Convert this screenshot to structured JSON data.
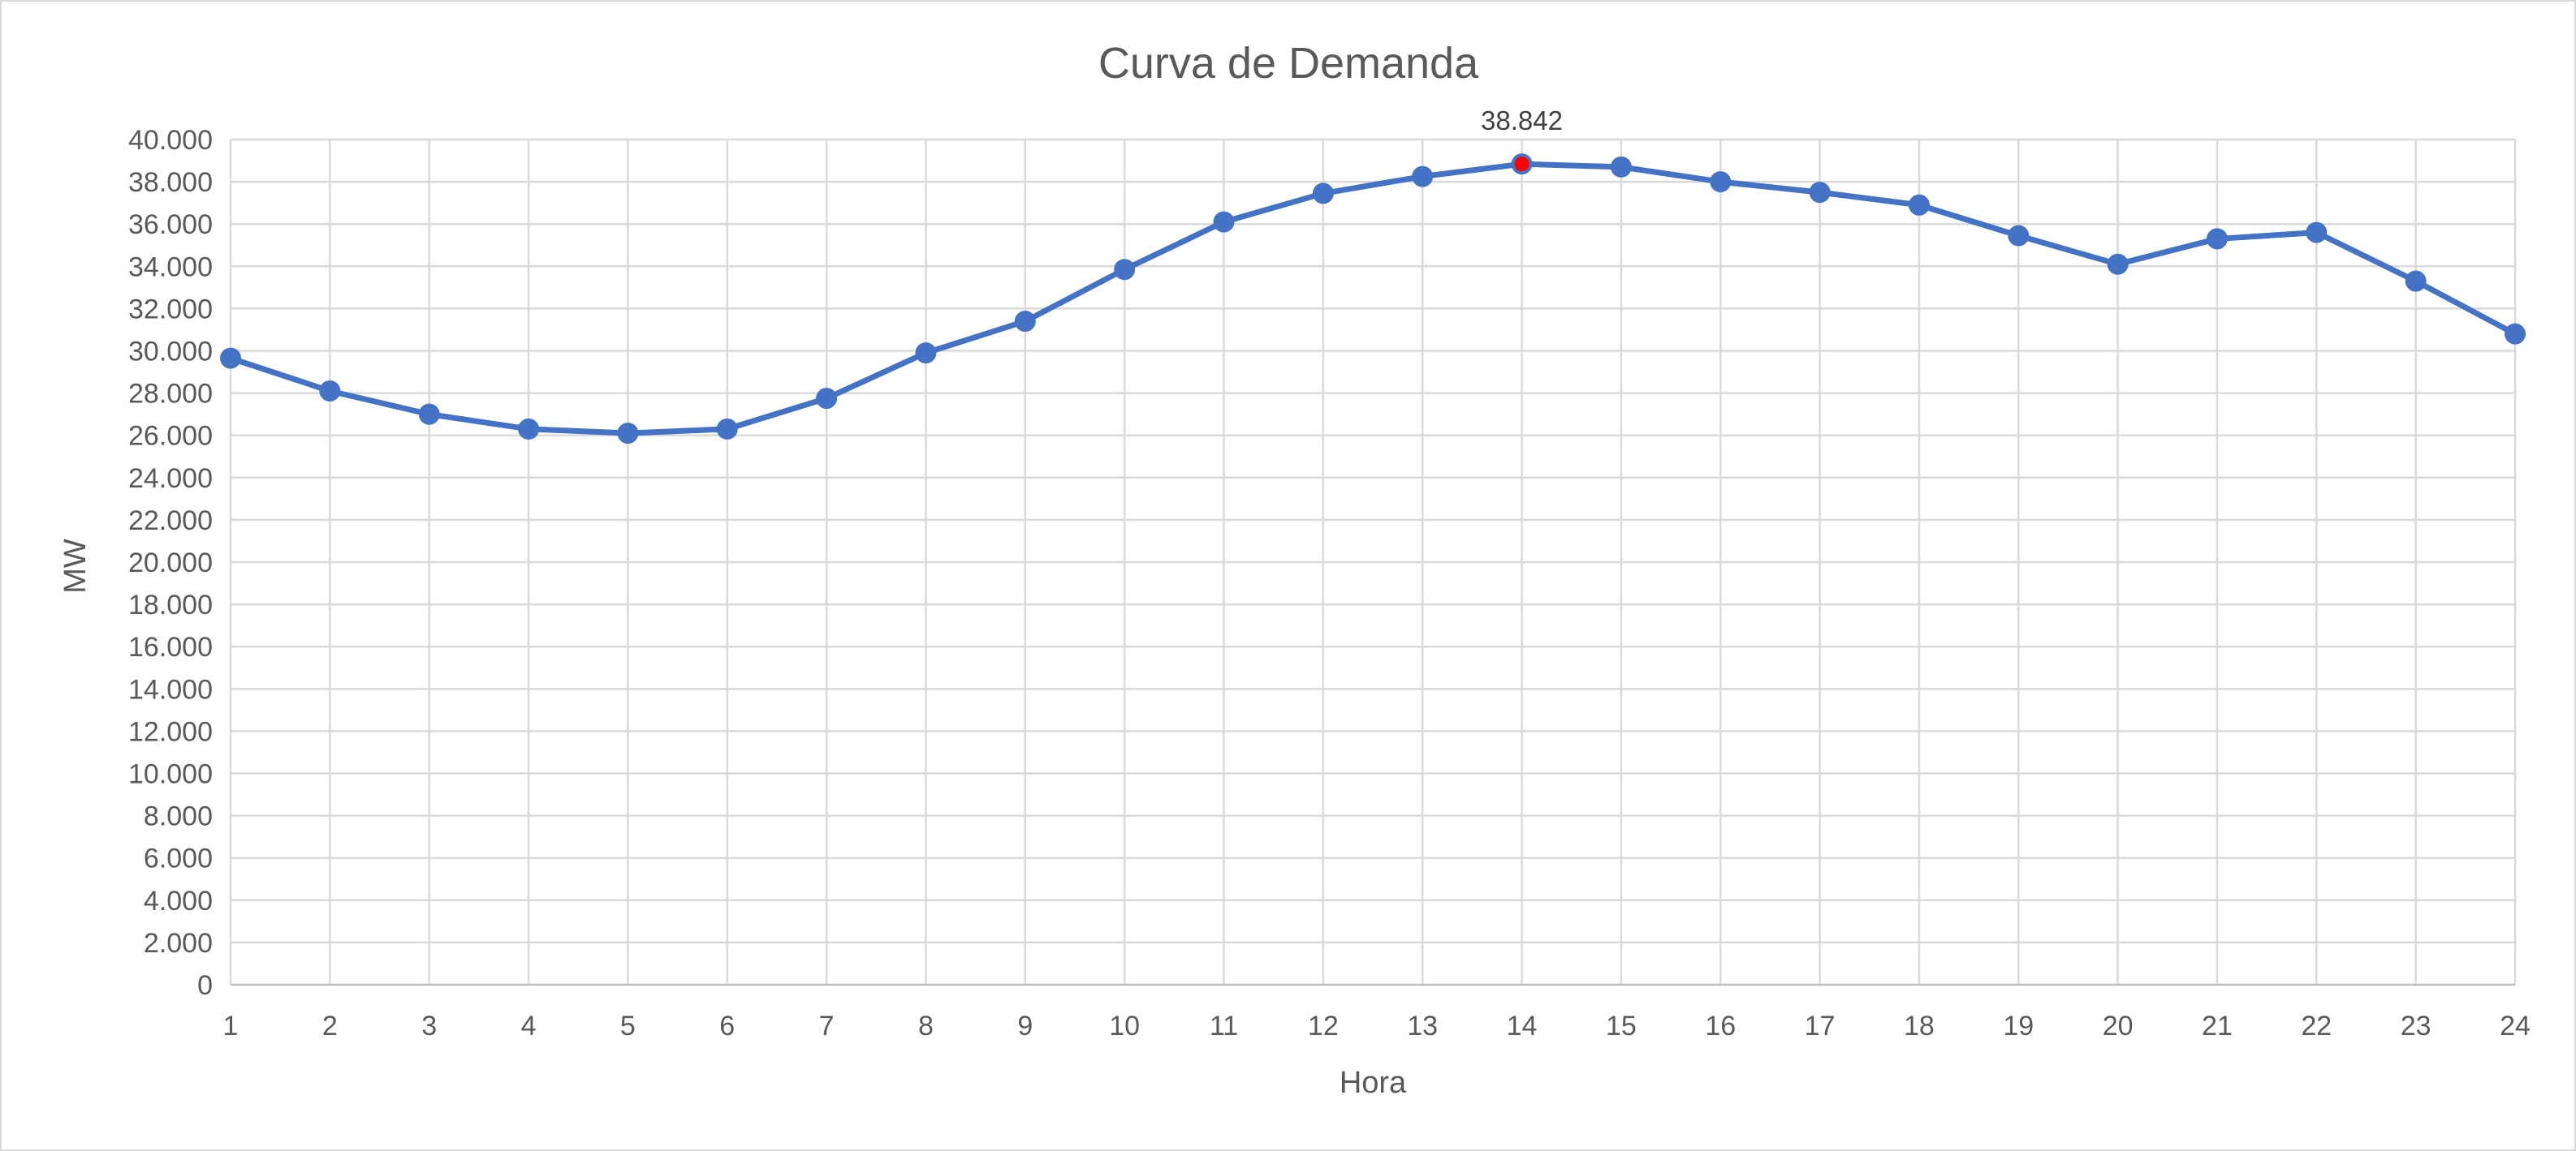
{
  "chart_data": {
    "type": "line",
    "title": "Curva de Demanda",
    "xlabel": "Hora",
    "ylabel": "MW",
    "x": [
      1,
      2,
      3,
      4,
      5,
      6,
      7,
      8,
      9,
      10,
      11,
      12,
      13,
      14,
      15,
      16,
      17,
      18,
      19,
      20,
      21,
      22,
      23,
      24
    ],
    "x_tick_labels": [
      "1",
      "2",
      "3",
      "4",
      "5",
      "6",
      "7",
      "8",
      "9",
      "10",
      "11",
      "12",
      "13",
      "14",
      "15",
      "16",
      "17",
      "18",
      "19",
      "20",
      "21",
      "22",
      "23",
      "24"
    ],
    "series": [
      {
        "color": "#4472c4",
        "values": [
          29650,
          28100,
          27000,
          26300,
          26100,
          26300,
          27750,
          29900,
          31400,
          33850,
          36100,
          37450,
          38250,
          38842,
          38700,
          38000,
          37500,
          36900,
          35450,
          34100,
          35300,
          35600,
          33300,
          30800
        ]
      }
    ],
    "ylim": [
      0,
      40000
    ],
    "y_ticks": [
      0,
      2000,
      4000,
      6000,
      8000,
      10000,
      12000,
      14000,
      16000,
      18000,
      20000,
      22000,
      24000,
      26000,
      28000,
      30000,
      32000,
      34000,
      36000,
      38000,
      40000
    ],
    "y_tick_labels": [
      "0",
      "2.000",
      "4.000",
      "6.000",
      "8.000",
      "10.000",
      "12.000",
      "14.000",
      "16.000",
      "18.000",
      "20.000",
      "22.000",
      "24.000",
      "26.000",
      "28.000",
      "30.000",
      "32.000",
      "34.000",
      "36.000",
      "38.000",
      "40.000"
    ],
    "grid": true,
    "legend": "none",
    "annotations": [
      {
        "x": 14,
        "y": 38842,
        "text": "38.842",
        "marker_color": "#ff0000"
      }
    ]
  }
}
